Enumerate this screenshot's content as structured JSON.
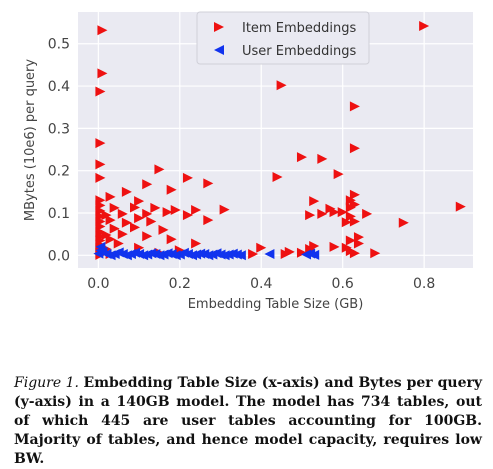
{
  "chart_data": {
    "type": "scatter",
    "xlabel": "Embedding Table Size (GB)",
    "ylabel": "MBytes (10e6) per query",
    "xlim": [
      -0.05,
      0.92
    ],
    "ylim": [
      -0.03,
      0.575
    ],
    "xticks": [
      0.0,
      0.2,
      0.4,
      0.6,
      0.8
    ],
    "xtick_labels": [
      "0.0",
      "0.2",
      "0.4",
      "0.6",
      "0.8"
    ],
    "yticks": [
      0.0,
      0.1,
      0.2,
      0.3,
      0.4,
      0.5
    ],
    "ytick_labels": [
      "0.0",
      "0.1",
      "0.2",
      "0.3",
      "0.4",
      "0.5"
    ],
    "grid": true,
    "legend_position": "top-center",
    "series": [
      {
        "name": "Item Embeddings",
        "color": "#ee1111",
        "marker": "triangle-right",
        "points": [
          [
            0.01,
            0.532
          ],
          [
            0.8,
            0.542
          ],
          [
            0.01,
            0.43
          ],
          [
            0.45,
            0.402
          ],
          [
            0.005,
            0.387
          ],
          [
            0.63,
            0.352
          ],
          [
            0.005,
            0.265
          ],
          [
            0.63,
            0.253
          ],
          [
            0.5,
            0.232
          ],
          [
            0.55,
            0.228
          ],
          [
            0.005,
            0.215
          ],
          [
            0.59,
            0.192
          ],
          [
            0.44,
            0.185
          ],
          [
            0.005,
            0.183
          ],
          [
            0.15,
            0.203
          ],
          [
            0.22,
            0.183
          ],
          [
            0.12,
            0.168
          ],
          [
            0.27,
            0.17
          ],
          [
            0.07,
            0.15
          ],
          [
            0.18,
            0.155
          ],
          [
            0.03,
            0.138
          ],
          [
            0.1,
            0.128
          ],
          [
            0.005,
            0.13
          ],
          [
            0.005,
            0.118
          ],
          [
            0.04,
            0.112
          ],
          [
            0.09,
            0.113
          ],
          [
            0.14,
            0.112
          ],
          [
            0.19,
            0.107
          ],
          [
            0.24,
            0.107
          ],
          [
            0.31,
            0.108
          ],
          [
            0.005,
            0.105
          ],
          [
            0.02,
            0.095
          ],
          [
            0.06,
            0.098
          ],
          [
            0.12,
            0.098
          ],
          [
            0.17,
            0.102
          ],
          [
            0.005,
            0.092
          ],
          [
            0.03,
            0.083
          ],
          [
            0.1,
            0.088
          ],
          [
            0.22,
            0.095
          ],
          [
            0.005,
            0.08
          ],
          [
            0.07,
            0.077
          ],
          [
            0.13,
            0.08
          ],
          [
            0.27,
            0.083
          ],
          [
            0.005,
            0.068
          ],
          [
            0.04,
            0.063
          ],
          [
            0.09,
            0.066
          ],
          [
            0.16,
            0.06
          ],
          [
            0.005,
            0.055
          ],
          [
            0.02,
            0.048
          ],
          [
            0.06,
            0.05
          ],
          [
            0.005,
            0.045
          ],
          [
            0.03,
            0.038
          ],
          [
            0.12,
            0.045
          ],
          [
            0.18,
            0.038
          ],
          [
            0.005,
            0.035
          ],
          [
            0.05,
            0.028
          ],
          [
            0.24,
            0.028
          ],
          [
            0.005,
            0.025
          ],
          [
            0.005,
            0.018
          ],
          [
            0.02,
            0.015
          ],
          [
            0.1,
            0.018
          ],
          [
            0.2,
            0.012
          ],
          [
            0.005,
            0.012
          ],
          [
            0.15,
            0.006
          ],
          [
            0.005,
            0.005
          ],
          [
            0.03,
            0.003
          ],
          [
            0.005,
            0.001
          ],
          [
            0.63,
            0.143
          ],
          [
            0.62,
            0.13
          ],
          [
            0.63,
            0.12
          ],
          [
            0.62,
            0.113
          ],
          [
            0.6,
            0.102
          ],
          [
            0.62,
            0.092
          ],
          [
            0.57,
            0.11
          ],
          [
            0.58,
            0.102
          ],
          [
            0.53,
            0.128
          ],
          [
            0.55,
            0.098
          ],
          [
            0.61,
            0.078
          ],
          [
            0.52,
            0.095
          ],
          [
            0.63,
            0.08
          ],
          [
            0.66,
            0.098
          ],
          [
            0.64,
            0.043
          ],
          [
            0.62,
            0.035
          ],
          [
            0.61,
            0.018
          ],
          [
            0.52,
            0.015
          ],
          [
            0.53,
            0.022
          ],
          [
            0.58,
            0.02
          ],
          [
            0.62,
            0.01
          ],
          [
            0.63,
            0.005
          ],
          [
            0.68,
            0.005
          ],
          [
            0.64,
            0.028
          ],
          [
            0.75,
            0.077
          ],
          [
            0.89,
            0.115
          ],
          [
            0.5,
            0.006
          ],
          [
            0.47,
            0.008
          ],
          [
            0.4,
            0.018
          ],
          [
            0.46,
            0.003
          ],
          [
            0.38,
            0.003
          ]
        ]
      },
      {
        "name": "User Embeddings",
        "color": "#1133ee",
        "marker": "triangle-left",
        "points": [
          [
            0.0,
            0.004
          ],
          [
            0.02,
            0.003
          ],
          [
            0.04,
            0.003
          ],
          [
            0.06,
            0.003
          ],
          [
            0.08,
            0.003
          ],
          [
            0.1,
            0.003
          ],
          [
            0.12,
            0.002
          ],
          [
            0.14,
            0.003
          ],
          [
            0.16,
            0.002
          ],
          [
            0.18,
            0.003
          ],
          [
            0.2,
            0.002
          ],
          [
            0.22,
            0.003
          ],
          [
            0.24,
            0.002
          ],
          [
            0.26,
            0.003
          ],
          [
            0.28,
            0.002
          ],
          [
            0.3,
            0.002
          ],
          [
            0.32,
            0.002
          ],
          [
            0.34,
            0.002
          ],
          [
            0.01,
            0.008
          ],
          [
            0.05,
            0.007
          ],
          [
            0.09,
            0.006
          ],
          [
            0.13,
            0.005
          ],
          [
            0.17,
            0.005
          ],
          [
            0.21,
            0.006
          ],
          [
            0.25,
            0.004
          ],
          [
            0.29,
            0.005
          ],
          [
            0.33,
            0.004
          ],
          [
            0.03,
            0.0
          ],
          [
            0.07,
            0.0
          ],
          [
            0.11,
            0.0
          ],
          [
            0.15,
            0.0
          ],
          [
            0.19,
            0.0
          ],
          [
            0.23,
            0.0
          ],
          [
            0.27,
            0.0
          ],
          [
            0.31,
            0.0
          ],
          [
            0.35,
            0.0
          ],
          [
            0.42,
            0.003
          ],
          [
            0.51,
            0.002
          ],
          [
            0.53,
            0.001
          ],
          [
            0.52,
            0.004
          ],
          [
            0.005,
            0.02
          ],
          [
            0.005,
            0.012
          ]
        ]
      }
    ]
  },
  "caption": {
    "label": "Figure 1.",
    "text": "Embedding Table Size (x-axis) and Bytes per query (y-axis) in a 140GB model. The model has 734 tables, out of which 445 are user tables accounting for 100GB. Majority of tables, and hence model capacity, requires low BW."
  }
}
